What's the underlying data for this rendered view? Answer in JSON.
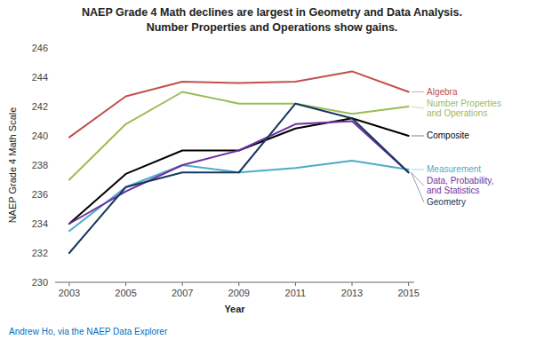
{
  "chart_data": {
    "type": "line",
    "title": "NAEP Grade 4 Math declines are largest in Geometry and Data Analysis.",
    "subtitle": "Number Properties and Operations show gains.",
    "x_label": "Year",
    "y_label": "NAEP Grade 4 Math Scale",
    "annotations": [
      {
        "text": "Andrew Ho, via the NAEP Data Explorer"
      }
    ],
    "x": [
      2003,
      2005,
      2007,
      2009,
      2011,
      2013,
      2015
    ],
    "series": [
      {
        "name": "Algebra",
        "color": "#C0504D",
        "values": [
          239.9,
          242.7,
          243.7,
          243.6,
          243.7,
          244.4,
          243.0
        ]
      },
      {
        "name": "Number Properties\nand Operations",
        "color": "#9BBB59",
        "values": [
          237.0,
          240.8,
          243.0,
          242.2,
          242.2,
          241.5,
          242.0
        ]
      },
      {
        "name": "Composite",
        "color": "#000000",
        "values": [
          234.0,
          237.4,
          239.0,
          239.0,
          240.5,
          241.2,
          240.0
        ]
      },
      {
        "name": "Measurement",
        "color": "#4BACC6",
        "values": [
          233.5,
          236.5,
          238.0,
          237.5,
          237.8,
          238.3,
          237.7
        ]
      },
      {
        "name": "Data, Probability,\nand Statistics",
        "color": "#7030A0",
        "values": [
          234.0,
          236.2,
          238.0,
          239.0,
          240.8,
          241.0,
          237.5
        ]
      },
      {
        "name": "Geometry",
        "color": "#17375E",
        "values": [
          232.0,
          236.5,
          237.5,
          237.5,
          242.2,
          241.2,
          237.5
        ]
      }
    ],
    "xlim": [
      2002.5,
      2015.2
    ],
    "xticks": [
      2003,
      2005,
      2007,
      2009,
      2011,
      2013,
      2015
    ],
    "ylim": [
      230,
      246
    ],
    "yticks": [
      230,
      232,
      234,
      236,
      238,
      240,
      242,
      244,
      246
    ],
    "grid": false
  }
}
